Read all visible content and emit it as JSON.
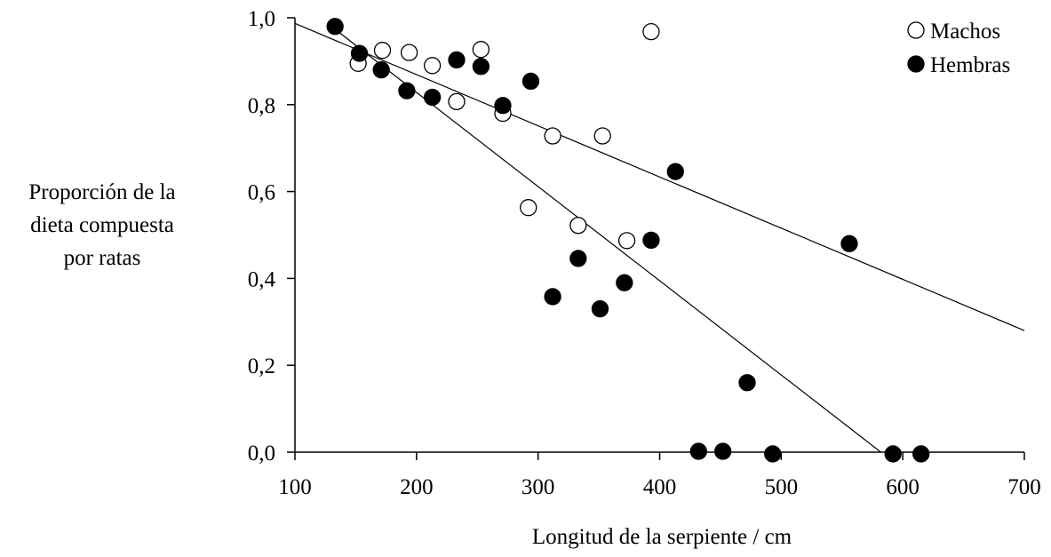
{
  "chart_data": {
    "type": "scatter",
    "title": "",
    "xlabel": "Longitud de la serpiente / cm",
    "ylabel_lines": [
      "Proporción de la",
      "dieta compuesta",
      "por ratas"
    ],
    "xlim": [
      100,
      700
    ],
    "ylim": [
      0,
      1.0
    ],
    "xticks": [
      100,
      200,
      300,
      400,
      500,
      600,
      700
    ],
    "xtick_labels": [
      "100",
      "200",
      "300",
      "400",
      "500",
      "600",
      "700"
    ],
    "yticks": [
      0,
      0.2,
      0.4,
      0.6,
      0.8,
      1.0
    ],
    "ytick_labels": [
      "0,0",
      "0,2",
      "0,4",
      "0,6",
      "0,8",
      "1,0"
    ],
    "grid": false,
    "legend_position": "top-right",
    "series": [
      {
        "name": "Machos",
        "marker": "open-circle",
        "color": "#000000",
        "points": [
          [
            152,
            0.895
          ],
          [
            172,
            0.925
          ],
          [
            194,
            0.92
          ],
          [
            213,
            0.89
          ],
          [
            233,
            0.807
          ],
          [
            253,
            0.927
          ],
          [
            271,
            0.78
          ],
          [
            292,
            0.563
          ],
          [
            312,
            0.728
          ],
          [
            333,
            0.522
          ],
          [
            353,
            0.728
          ],
          [
            373,
            0.487
          ],
          [
            393,
            0.968
          ]
        ]
      },
      {
        "name": "Hembras",
        "marker": "filled-circle",
        "color": "#000000",
        "points": [
          [
            133,
            0.98
          ],
          [
            153,
            0.918
          ],
          [
            171,
            0.88
          ],
          [
            192,
            0.832
          ],
          [
            213,
            0.817
          ],
          [
            233,
            0.903
          ],
          [
            253,
            0.888
          ],
          [
            271,
            0.798
          ],
          [
            294,
            0.854
          ],
          [
            312,
            0.358
          ],
          [
            333,
            0.446
          ],
          [
            351,
            0.33
          ],
          [
            371,
            0.39
          ],
          [
            393,
            0.488
          ],
          [
            413,
            0.646
          ],
          [
            432,
            0.002
          ],
          [
            452,
            0.002
          ],
          [
            472,
            0.16
          ],
          [
            493,
            -0.004
          ],
          [
            556,
            0.48
          ],
          [
            592,
            -0.004
          ],
          [
            615,
            -0.004
          ]
        ]
      }
    ],
    "trend_lines": [
      {
        "from": [
          100,
          0.987
        ],
        "to": [
          700,
          0.28
        ]
      },
      {
        "from": [
          130,
          0.98
        ],
        "to": [
          582,
          0.0
        ]
      }
    ]
  }
}
